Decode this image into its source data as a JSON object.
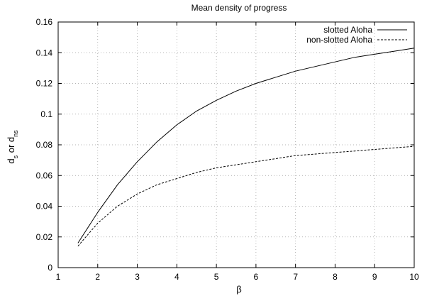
{
  "chart_data": {
    "type": "line",
    "title": "Mean density of progress",
    "xlabel": "β",
    "ylabel": {
      "parts": [
        {
          "text": "d",
          "sub": false
        },
        {
          "text": "s",
          "sub": true
        },
        {
          "text": " or d",
          "sub": false
        },
        {
          "text": "ns",
          "sub": true
        }
      ]
    },
    "xlim": [
      1,
      10
    ],
    "ylim": [
      0,
      0.16
    ],
    "xticks": [
      1,
      2,
      3,
      4,
      5,
      6,
      7,
      8,
      9,
      10
    ],
    "yticks": [
      0,
      0.02,
      0.04,
      0.06,
      0.08,
      0.1,
      0.12,
      0.14,
      0.16
    ],
    "xtick_labels": [
      "1",
      "2",
      "3",
      "4",
      "5",
      "6",
      "7",
      "8",
      "9",
      "10"
    ],
    "ytick_labels": [
      "0",
      "0.02",
      "0.04",
      "0.06",
      "0.08",
      "0.1",
      "0.12",
      "0.14",
      "0.16"
    ],
    "grid": true,
    "legend_position": "top-right",
    "series": [
      {
        "name": "slotted Aloha",
        "style": "solid",
        "x": [
          1.5,
          2,
          2.5,
          3,
          3.5,
          4,
          4.5,
          5,
          5.5,
          6,
          6.5,
          7,
          7.5,
          8,
          8.5,
          9,
          9.5,
          10
        ],
        "y": [
          0.016,
          0.036,
          0.054,
          0.069,
          0.082,
          0.093,
          0.102,
          0.109,
          0.115,
          0.12,
          0.124,
          0.128,
          0.131,
          0.134,
          0.137,
          0.139,
          0.141,
          0.143
        ]
      },
      {
        "name": "non-slotted Aloha",
        "style": "dashed",
        "x": [
          1.5,
          2,
          2.5,
          3,
          3.5,
          4,
          4.5,
          5,
          5.5,
          6,
          6.5,
          7,
          7.5,
          8,
          8.5,
          9,
          9.5,
          10
        ],
        "y": [
          0.014,
          0.029,
          0.04,
          0.048,
          0.054,
          0.058,
          0.062,
          0.065,
          0.067,
          0.069,
          0.071,
          0.073,
          0.074,
          0.075,
          0.076,
          0.077,
          0.078,
          0.079
        ]
      }
    ]
  },
  "colors": {
    "series_color": "#000000",
    "grid_color": "#9a9a9a"
  }
}
